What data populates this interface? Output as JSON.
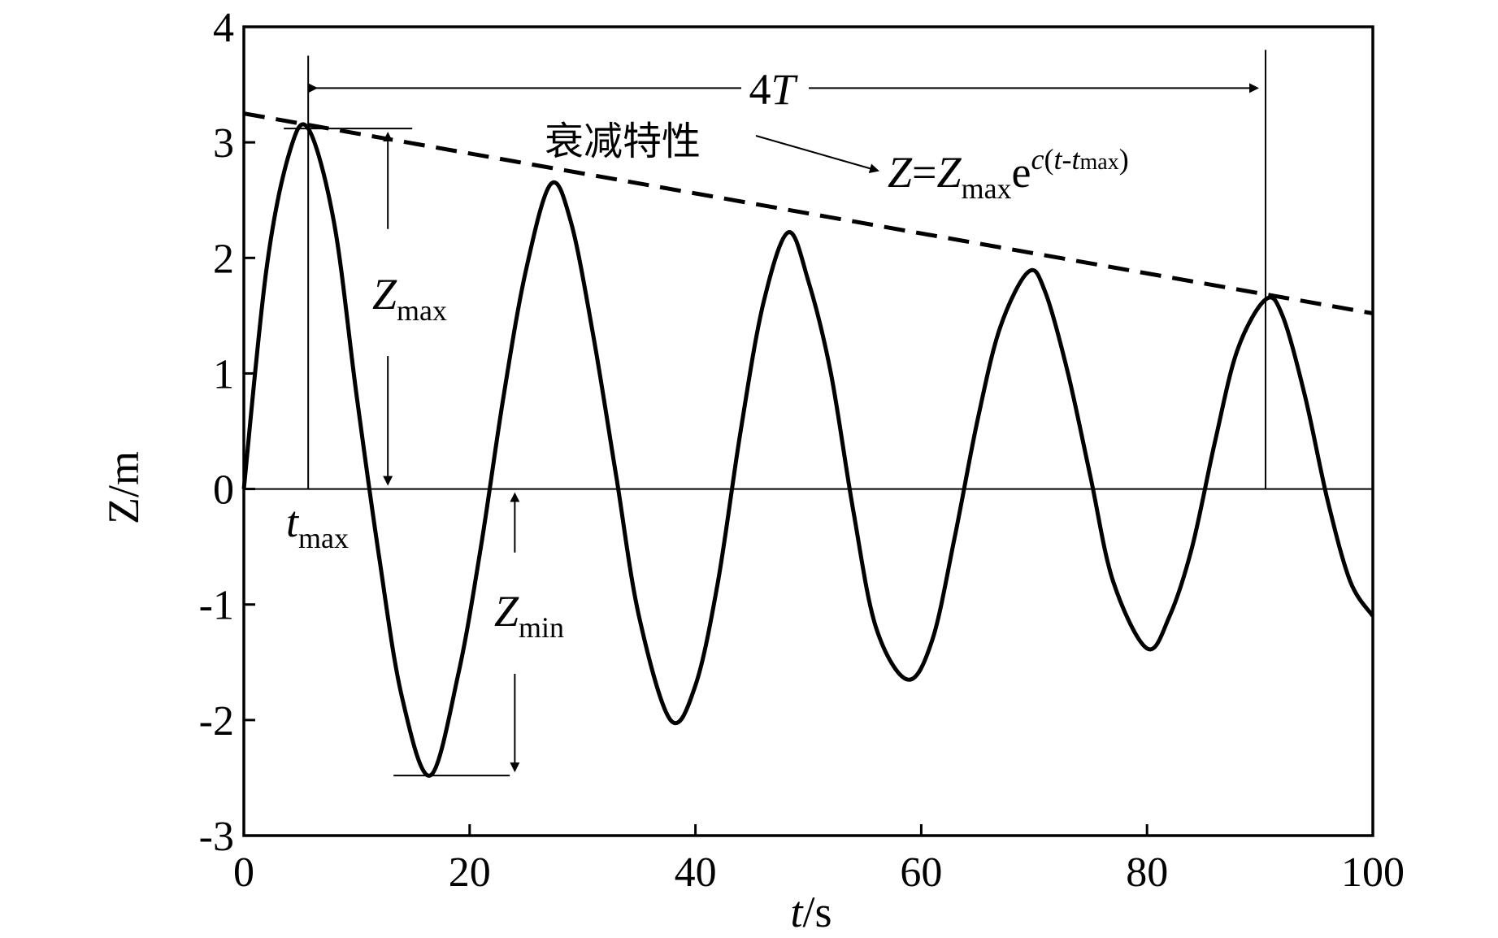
{
  "chart_data": {
    "type": "line",
    "title": "",
    "xlabel": {
      "italic": "t",
      "rest": "/s"
    },
    "ylabel": "Z/m",
    "xlim": [
      0,
      100
    ],
    "ylim": [
      -3,
      4
    ],
    "xticks": [
      0,
      20,
      40,
      60,
      80,
      100
    ],
    "yticks": [
      -3,
      -2,
      -1,
      0,
      1,
      2,
      3,
      4
    ],
    "grid": false,
    "series": [
      {
        "style": "solid",
        "x": [
          0,
          2,
          4,
          5.7,
          8,
          10,
          12,
          14,
          16.5,
          19,
          21,
          23,
          25,
          27.2,
          29,
          31,
          33,
          35,
          37.8,
          40,
          42,
          44,
          46,
          48.2,
          50,
          52,
          54,
          56,
          58.8,
          61,
          63,
          65,
          67,
          69.5,
          71,
          73,
          75,
          77,
          80,
          82,
          84,
          86,
          88,
          90.5,
          92,
          94,
          96,
          98,
          100
        ],
        "y": [
          0,
          1.9,
          2.9,
          3.12,
          2.3,
          0.8,
          -0.6,
          -1.8,
          -2.48,
          -1.6,
          -0.5,
          0.8,
          1.9,
          2.64,
          2.3,
          1.3,
          0.1,
          -1.1,
          -2.0,
          -1.7,
          -0.8,
          0.5,
          1.6,
          2.22,
          1.8,
          1.0,
          -0.2,
          -1.2,
          -1.65,
          -1.3,
          -0.4,
          0.6,
          1.4,
          1.88,
          1.7,
          1.0,
          0.1,
          -0.8,
          -1.38,
          -1.1,
          -0.5,
          0.4,
          1.2,
          1.64,
          1.5,
          0.8,
          -0.1,
          -0.8,
          -1.1
        ]
      },
      {
        "style": "dashed",
        "x": [
          0,
          100
        ],
        "y": [
          3.25,
          1.52
        ]
      }
    ],
    "reference_lines": [
      {
        "orientation": "horizontal",
        "y": 0
      },
      {
        "orientation": "vertical",
        "x": 5.7,
        "y_range": [
          0,
          3.75
        ]
      },
      {
        "orientation": "vertical",
        "x": 90.5,
        "y_range": [
          0,
          3.8
        ]
      }
    ],
    "annotations": {
      "period_label": {
        "coef": "4",
        "italic": "T"
      },
      "decay_label": "衰减特性",
      "formula": {
        "lhs_italic": "Z",
        "eq": "=",
        "z_italic": "Z",
        "z_sub": "max",
        "e": "e",
        "exp_c": "c",
        "exp_open": "(",
        "exp_t": "t",
        "exp_dash": "-",
        "exp_t2": "t",
        "exp_sub": "max",
        "exp_close": ")"
      },
      "zmax_label": {
        "italic": "Z",
        "sub": "max"
      },
      "zmin_label": {
        "italic": "Z",
        "sub": "min"
      },
      "tmax_label": {
        "italic": "t",
        "sub": "max"
      }
    }
  }
}
